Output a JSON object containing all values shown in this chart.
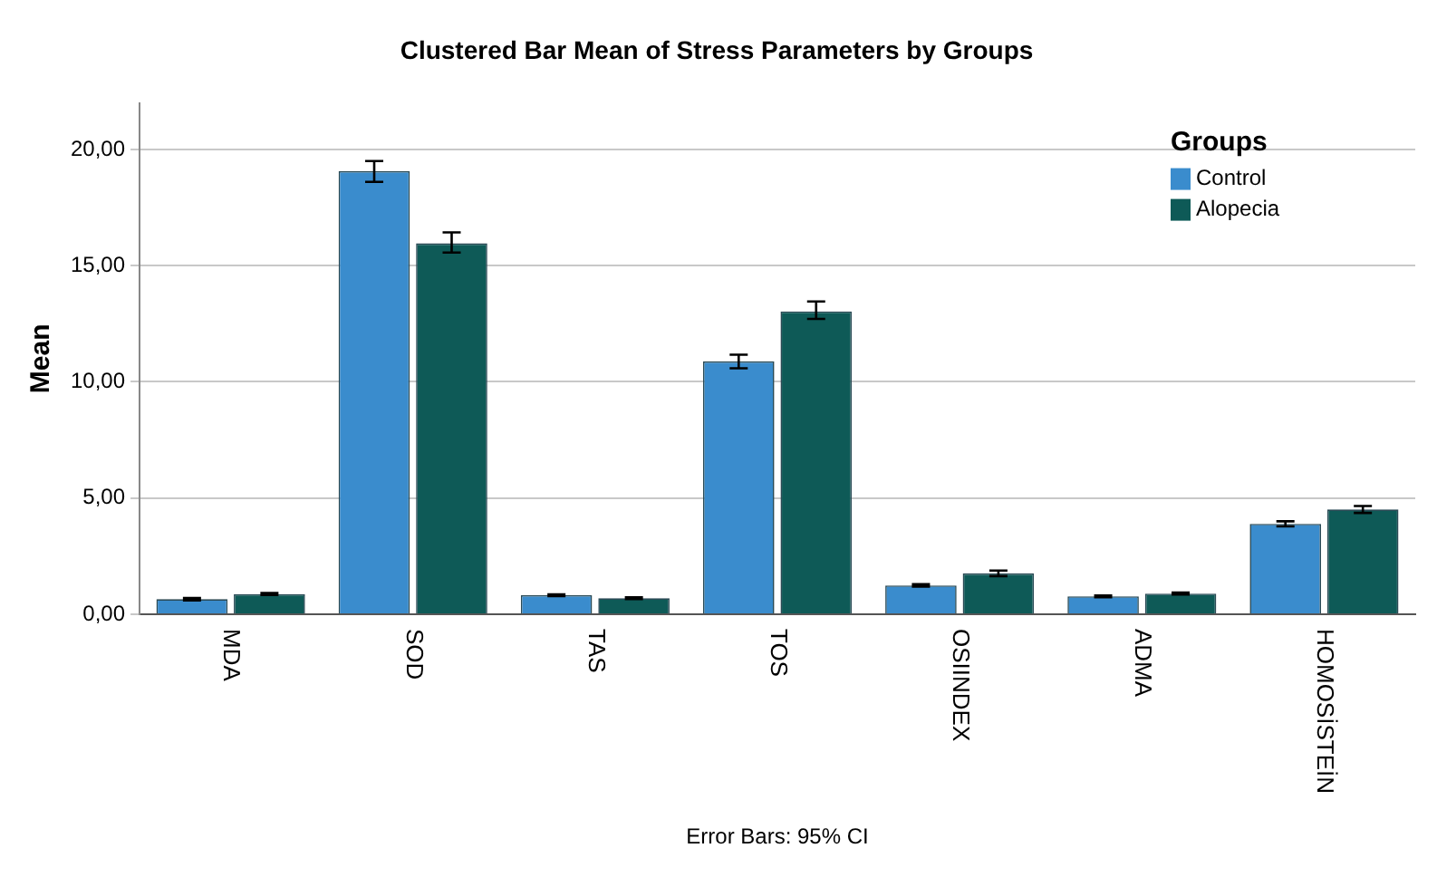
{
  "chart_data": {
    "type": "bar",
    "title": "Clustered Bar Mean of Stress Parameters by Groups",
    "ylabel": "Mean",
    "legend_title": "Groups",
    "categories": [
      "MDA",
      "SOD",
      "TAS",
      "TOS",
      "OSIINDEX",
      "ADMA",
      "HOMOSİSTEİN"
    ],
    "series": [
      {
        "name": "Control",
        "color": "#3a8ccd",
        "values": [
          0.65,
          19.06,
          0.82,
          10.88,
          1.24,
          0.77,
          3.89
        ],
        "errors": [
          [
            0.6,
            0.7
          ],
          [
            18.6,
            19.5
          ],
          [
            0.78,
            0.86
          ],
          [
            10.58,
            11.17
          ],
          [
            1.19,
            1.29
          ],
          [
            0.73,
            0.81
          ],
          [
            3.78,
            4.0
          ]
        ]
      },
      {
        "name": "Alopecia",
        "color": "#0e5a57",
        "values": [
          0.87,
          15.96,
          0.69,
          13.03,
          1.76,
          0.89,
          4.51
        ],
        "errors": [
          [
            0.83,
            0.91
          ],
          [
            15.56,
            16.43
          ],
          [
            0.65,
            0.73
          ],
          [
            12.71,
            13.46
          ],
          [
            1.64,
            1.88
          ],
          [
            0.85,
            0.93
          ],
          [
            4.36,
            4.66
          ]
        ]
      }
    ],
    "ylim": [
      0,
      22
    ],
    "yticks": [
      {
        "value": 0,
        "label": "0,00"
      },
      {
        "value": 5,
        "label": "5,00"
      },
      {
        "value": 10,
        "label": "10,00"
      },
      {
        "value": 15,
        "label": "15,00"
      },
      {
        "value": 20,
        "label": "20,00"
      }
    ],
    "grid": "y",
    "legend": "top right",
    "annotations": [
      "Error Bars: 95% CI"
    ]
  }
}
